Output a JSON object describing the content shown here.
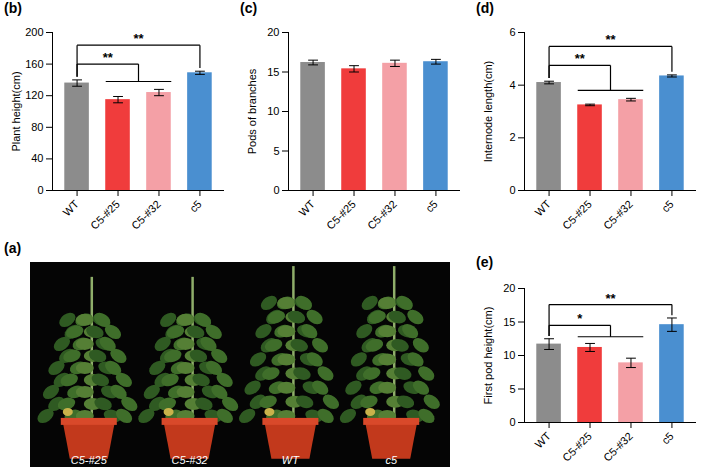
{
  "chart_data": [
    {
      "type": "photo",
      "panel": "(a)",
      "categories": [
        "C5-#25",
        "C5-#32",
        "WT",
        "c5"
      ]
    },
    {
      "type": "bar",
      "panel": "(b)",
      "ylabel": "Plant height(cm)",
      "categories": [
        "WT",
        "C5-#25",
        "C5-#32",
        "c5"
      ],
      "values": [
        136,
        115,
        124,
        149
      ],
      "errors": [
        4,
        4,
        4,
        2
      ],
      "colors": [
        "#8c8c8c",
        "#f03c3c",
        "#f4a0a6",
        "#4a8fd0"
      ],
      "ylim": [
        0,
        200
      ],
      "yticks": [
        0,
        40,
        80,
        120,
        160,
        200
      ],
      "annotations": [
        {
          "text": "**",
          "from": "WT",
          "to": [
            "C5-#25",
            "C5-#32"
          ]
        },
        {
          "text": "**",
          "from": "WT",
          "to": [
            "c5"
          ]
        }
      ]
    },
    {
      "type": "bar",
      "panel": "(c)",
      "ylabel": "Pods of branches",
      "categories": [
        "WT",
        "C5-#25",
        "C5-#32",
        "c5"
      ],
      "values": [
        16.2,
        15.4,
        16.1,
        16.3
      ],
      "errors": [
        0.3,
        0.4,
        0.4,
        0.3
      ],
      "colors": [
        "#8c8c8c",
        "#f03c3c",
        "#f4a0a6",
        "#4a8fd0"
      ],
      "ylim": [
        0,
        20
      ],
      "yticks": [
        0,
        5,
        10,
        15,
        20
      ],
      "annotations": []
    },
    {
      "type": "bar",
      "panel": "(d)",
      "ylabel": "Internode length(cm)",
      "categories": [
        "WT",
        "C5-#25",
        "C5-#32",
        "c5"
      ],
      "values": [
        4.1,
        3.25,
        3.45,
        4.35
      ],
      "errors": [
        0.05,
        0.03,
        0.05,
        0.04
      ],
      "colors": [
        "#8c8c8c",
        "#f03c3c",
        "#f4a0a6",
        "#4a8fd0"
      ],
      "ylim": [
        0,
        6
      ],
      "yticks": [
        0,
        2,
        4,
        6
      ],
      "annotations": [
        {
          "text": "**",
          "from": "WT",
          "to": [
            "C5-#25",
            "C5-#32"
          ]
        },
        {
          "text": "**",
          "from": "WT",
          "to": [
            "c5"
          ]
        }
      ]
    },
    {
      "type": "bar",
      "panel": "(e)",
      "ylabel": "First pod height(cm)",
      "categories": [
        "WT",
        "C5-#25",
        "C5-#32",
        "c5"
      ],
      "values": [
        11.7,
        11.2,
        8.9,
        14.6
      ],
      "errors": [
        0.8,
        0.6,
        0.7,
        1.0
      ],
      "colors": [
        "#8c8c8c",
        "#f03c3c",
        "#f4a0a6",
        "#4a8fd0"
      ],
      "ylim": [
        0,
        20
      ],
      "yticks": [
        0,
        5,
        10,
        15,
        20
      ],
      "annotations": [
        {
          "text": "*",
          "from": "WT",
          "to": [
            "C5-#25",
            "C5-#32"
          ]
        },
        {
          "text": "**",
          "from": "WT",
          "to": [
            "c5"
          ]
        }
      ]
    }
  ]
}
